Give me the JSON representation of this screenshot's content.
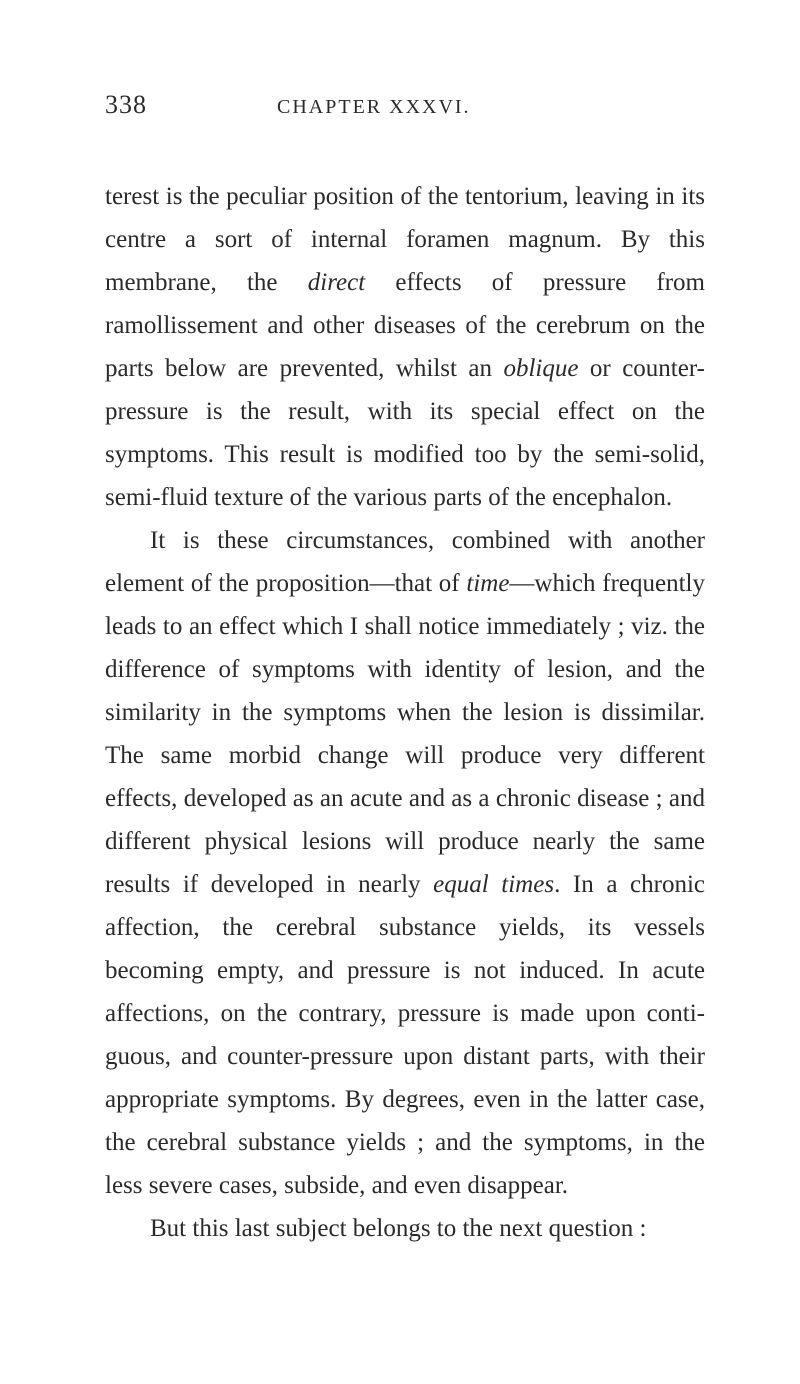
{
  "header": {
    "page_number": "338",
    "chapter_title": "CHAPTER XXXVI."
  },
  "paragraphs": {
    "p1_part1": "terest is the peculiar position of the tentorium, leaving in its centre a sort of internal foramen magnum. By this membrane, the ",
    "p1_italic1": "direct",
    "p1_part2": " effects of pressure from ramollissement and other diseases of the cerebrum on the parts below are prevented, whilst an ",
    "p1_italic2": "oblique",
    "p1_part3": " or counter-pressure is the result, with its special effect on the symptoms. This result is modified too by the semi-solid, semi-fluid texture of the various parts of the encephalon.",
    "p2_part1": "It is these circumstances, combined with another element of the proposition—that of ",
    "p2_italic1": "time",
    "p2_part2": "—which fre­quently leads to an effect which I shall notice imme­diately ; viz. the difference of symptoms with identity of lesion, and the similarity in the symptoms when the lesion is dissimilar. The same morbid change will produce very different effects, developed as an acute and as a chronic disease ; and different physical lesions will produce nearly the same results if deve­loped in nearly ",
    "p2_italic2": "equal times",
    "p2_part3": ". In a chronic affection, the cerebral substance yields, its vessels becoming empty, and pressure is not induced. In acute affec­tions, on the contrary, pressure is made upon conti­guous, and counter-pressure upon distant parts, with their appropriate symptoms. By degrees, even in the latter case, the cerebral substance yields ; and the symptoms, in the less severe cases, subside, and even disappear.",
    "p3": "But this last subject belongs to the next question :"
  },
  "colors": {
    "text": "#2a2a2a",
    "background": "#ffffff"
  },
  "typography": {
    "body_fontsize": 25,
    "header_page_fontsize": 26,
    "header_chapter_fontsize": 20,
    "line_height": 1.72
  }
}
